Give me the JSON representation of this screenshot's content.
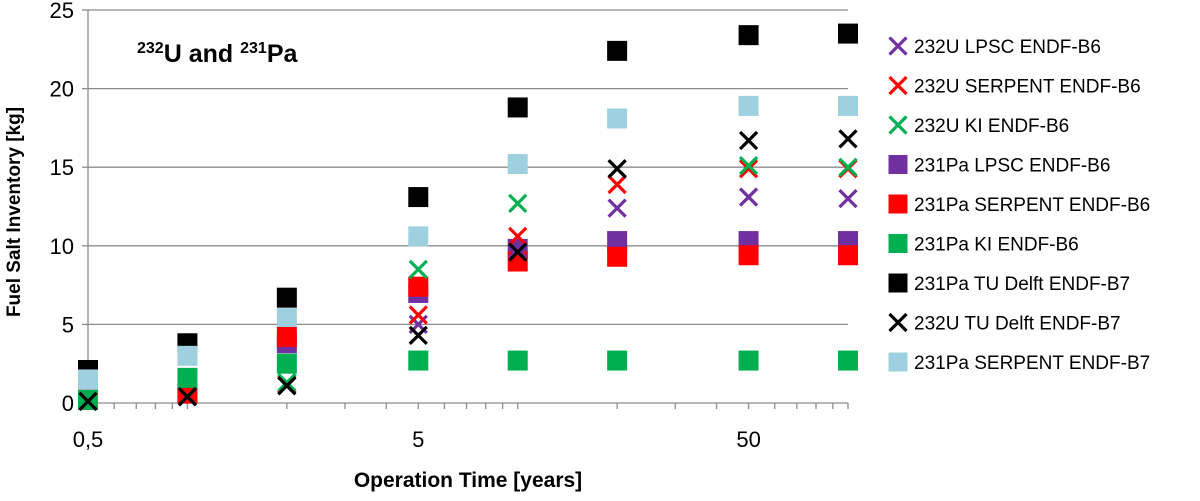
{
  "chart_data": {
    "type": "scatter",
    "title_parts": {
      "iso1": "232",
      "el1": "U and ",
      "iso2": "231",
      "el2": "Pa"
    },
    "xlabel": "Operation Time [years]",
    "ylabel": "Fuel Salt Inventory [kg]",
    "x_scale": "log",
    "xlim": [
      0.5,
      100
    ],
    "ylim": [
      0,
      25
    ],
    "x_ticks": [
      {
        "value": 0.5,
        "label": "0,5"
      },
      {
        "value": 5,
        "label": "5"
      },
      {
        "value": 50,
        "label": "50"
      }
    ],
    "y_ticks": [
      0,
      5,
      10,
      15,
      20,
      25
    ],
    "grid": "horizontal",
    "legend_position": "right",
    "x": [
      0.5,
      1,
      2,
      5,
      10,
      20,
      50,
      100
    ],
    "series": [
      {
        "name": "231Pa TU Delft ENDF-B7",
        "marker": "square",
        "color": "#000000",
        "values": [
          2.1,
          3.8,
          6.7,
          13.1,
          18.8,
          22.4,
          23.4,
          23.5
        ]
      },
      {
        "name": "231Pa SERPENT ENDF-B7",
        "marker": "square",
        "color": "#9fd0e0",
        "values": [
          1.5,
          3.0,
          5.4,
          10.6,
          15.2,
          18.1,
          18.9,
          18.9
        ]
      },
      {
        "name": "231Pa LPSC ENDF-B6",
        "marker": "square",
        "color": "#7030a0",
        "values": [
          0.2,
          0.6,
          3.8,
          7.0,
          9.8,
          10.3,
          10.3,
          10.3
        ]
      },
      {
        "name": "231Pa SERPENT ENDF-B6",
        "marker": "square",
        "color": "#ff0000",
        "values": [
          0.2,
          0.6,
          4.2,
          7.4,
          9.0,
          9.3,
          9.4,
          9.4
        ]
      },
      {
        "name": "231Pa KI ENDF-B6",
        "marker": "square",
        "color": "#00b050",
        "values": [
          0.2,
          1.6,
          2.5,
          2.7,
          2.7,
          2.7,
          2.7,
          2.7
        ]
      },
      {
        "name": "232U LPSC ENDF-B6",
        "marker": "x",
        "color": "#7030a0",
        "values": [
          0.1,
          0.4,
          1.1,
          5.0,
          9.8,
          12.4,
          13.1,
          13.0
        ]
      },
      {
        "name": "232U SERPENT ENDF-B6",
        "marker": "x",
        "color": "#ff0000",
        "values": [
          0.1,
          0.4,
          1.2,
          5.6,
          10.6,
          13.9,
          14.9,
          14.9
        ]
      },
      {
        "name": "232U KI ENDF-B6",
        "marker": "x",
        "color": "#00b050",
        "values": [
          0.1,
          0.4,
          1.3,
          8.5,
          12.7,
          14.9,
          15.1,
          15.0
        ]
      },
      {
        "name": "232U TU Delft ENDF-B7",
        "marker": "x",
        "color": "#000000",
        "values": [
          0.1,
          0.4,
          1.1,
          4.3,
          9.6,
          14.9,
          16.7,
          16.8
        ]
      }
    ],
    "legend_order": [
      "232U LPSC ENDF-B6",
      "232U SERPENT ENDF-B6",
      "232U KI ENDF-B6",
      "231Pa LPSC ENDF-B6",
      "231Pa SERPENT ENDF-B6",
      "231Pa KI ENDF-B6",
      "231Pa TU Delft ENDF-B7",
      "232U TU Delft ENDF-B7",
      "231Pa SERPENT ENDF-B7"
    ]
  }
}
